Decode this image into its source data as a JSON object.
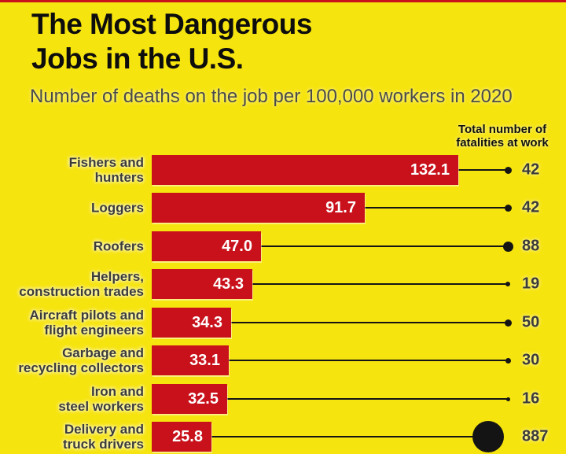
{
  "page": {
    "title_line1": "The Most Dangerous",
    "title_line2": "Jobs in the U.S.",
    "subtitle": "Number of deaths on the job per 100,000 workers in 2020",
    "legend_heading_line1": "Total number of",
    "legend_heading_line2": "fatalities at work"
  },
  "colors": {
    "background": "#f6e40f",
    "bar": "#c8111a",
    "title_text": "#0d0d0d",
    "subtitle_text": "#4a4a4a",
    "label_text": "#3b3b3b",
    "bar_value_text": "#ffffff",
    "dot_and_line": "#141414"
  },
  "chart_data": {
    "type": "bar",
    "orientation": "horizontal",
    "title": "The Most Dangerous Jobs in the U.S.",
    "subtitle": "Number of deaths on the job per 100,000 workers in 2020",
    "legend": "Total number of fatalities at work",
    "grid": false,
    "xlim": [
      0,
      140
    ],
    "categories": [
      "Fishers and hunters",
      "Loggers",
      "Roofers",
      "Helpers, construction trades",
      "Aircraft pilots and flight engineers",
      "Garbage and recycling collectors",
      "Iron and steel workers",
      "Delivery and truck drivers"
    ],
    "series": [
      {
        "name": "Deaths on the job per 100,000 workers (2020)",
        "values": [
          132.1,
          91.7,
          47.0,
          43.3,
          34.3,
          33.1,
          32.5,
          25.8
        ]
      },
      {
        "name": "Total number of fatalities at work",
        "values": [
          42,
          42,
          88,
          19,
          50,
          30,
          16,
          887
        ]
      }
    ],
    "rows": [
      {
        "label_lines": [
          "Fishers and",
          "hunters"
        ],
        "rate": 132.1,
        "rate_label": "132.1",
        "fatalities": 42,
        "fatalities_label": "42"
      },
      {
        "label_lines": [
          "Loggers"
        ],
        "rate": 91.7,
        "rate_label": "91.7",
        "fatalities": 42,
        "fatalities_label": "42"
      },
      {
        "label_lines": [
          "Roofers"
        ],
        "rate": 47.0,
        "rate_label": "47.0",
        "fatalities": 88,
        "fatalities_label": "88"
      },
      {
        "label_lines": [
          "Helpers,",
          "construction trades"
        ],
        "rate": 43.3,
        "rate_label": "43.3",
        "fatalities": 19,
        "fatalities_label": "19"
      },
      {
        "label_lines": [
          "Aircraft pilots and",
          "flight engineers"
        ],
        "rate": 34.3,
        "rate_label": "34.3",
        "fatalities": 50,
        "fatalities_label": "50"
      },
      {
        "label_lines": [
          "Garbage and",
          "recycling collectors"
        ],
        "rate": 33.1,
        "rate_label": "33.1",
        "fatalities": 30,
        "fatalities_label": "30"
      },
      {
        "label_lines": [
          "Iron and",
          "steel workers"
        ],
        "rate": 32.5,
        "rate_label": "32.5",
        "fatalities": 16,
        "fatalities_label": "16"
      },
      {
        "label_lines": [
          "Delivery and",
          "truck drivers"
        ],
        "rate": 25.8,
        "rate_label": "25.8",
        "fatalities": 887,
        "fatalities_label": "887"
      }
    ]
  }
}
